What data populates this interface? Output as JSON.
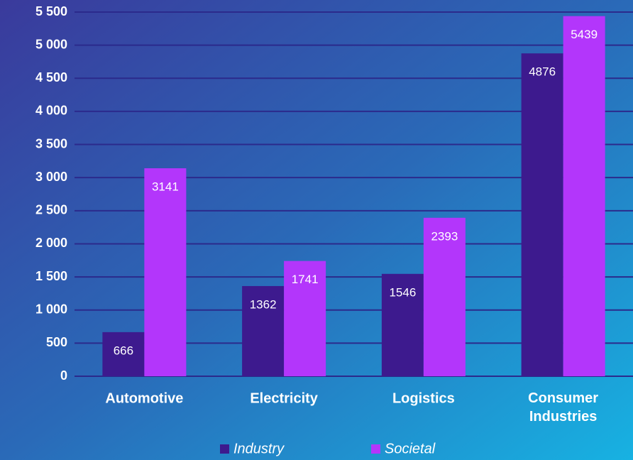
{
  "chart_data": {
    "type": "bar",
    "categories": [
      "Automotive",
      "Electricity",
      "Logistics",
      "Consumer Industries"
    ],
    "series": [
      {
        "name": "Industry",
        "color": "#3d1a8e",
        "values": [
          666,
          1362,
          1546,
          4876
        ]
      },
      {
        "name": "Societal",
        "color": "#b336fb",
        "values": [
          3141,
          1741,
          2393,
          5439
        ]
      }
    ],
    "ylim": [
      0,
      5500
    ],
    "yticks": [
      0,
      500,
      {
        "value": 1000,
        "label": "1 000"
      },
      {
        "value": 1500,
        "label": "1 500"
      },
      {
        "value": 2000,
        "label": "2 000"
      },
      {
        "value": 2500,
        "label": "2 500"
      },
      {
        "value": 3000,
        "label": "3 000"
      },
      {
        "value": 3500,
        "label": "3 500"
      },
      {
        "value": 4000,
        "label": "4 000"
      },
      {
        "value": 4500,
        "label": "4 500"
      },
      {
        "value": 5000,
        "label": "5 000"
      },
      {
        "value": 5500,
        "label": "5 500"
      }
    ],
    "grid": true,
    "legend": "bottom"
  }
}
